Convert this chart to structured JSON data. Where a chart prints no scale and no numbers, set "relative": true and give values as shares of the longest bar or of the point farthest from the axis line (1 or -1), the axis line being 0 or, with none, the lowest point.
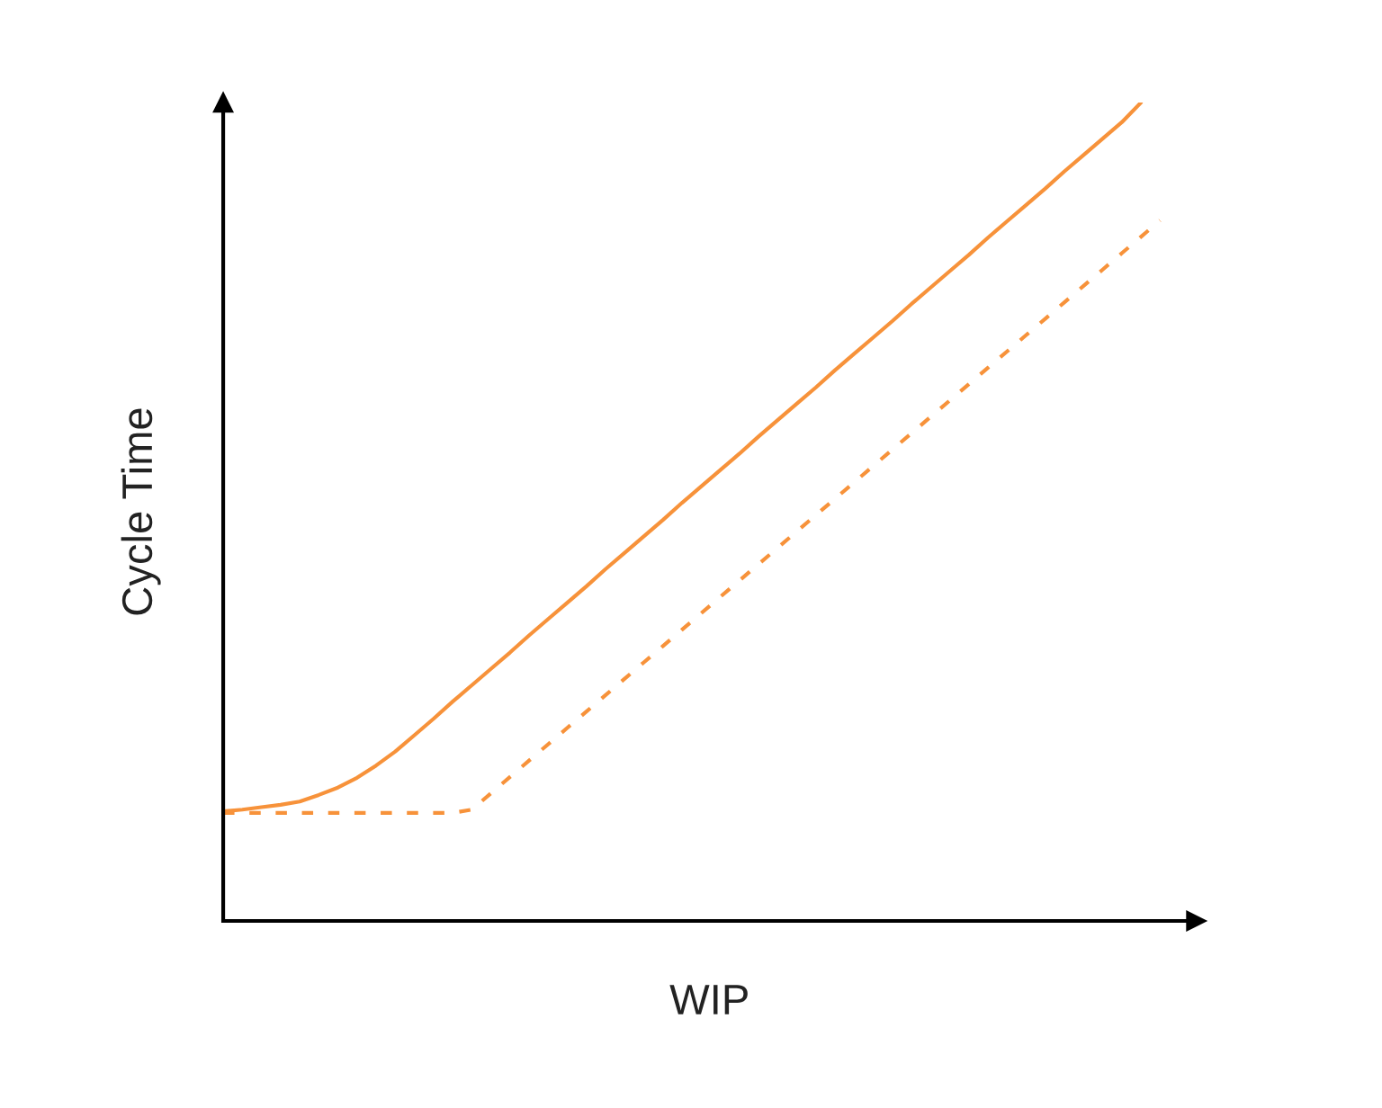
{
  "chart_data": {
    "type": "line",
    "relative": true,
    "xlabel": "WIP",
    "ylabel": "Cycle Time",
    "categories": [
      null,
      null,
      null,
      null,
      null,
      null,
      null,
      null,
      null,
      null,
      null,
      null,
      null,
      null,
      null,
      null,
      null,
      null,
      null,
      null,
      null,
      null,
      null,
      null,
      null,
      null,
      null,
      null,
      null,
      null,
      null,
      null,
      null,
      null,
      null,
      null,
      null,
      null,
      null,
      null,
      null,
      null,
      null,
      null,
      null,
      null,
      null,
      null,
      null,
      null
    ],
    "series": [
      {
        "color": "#f7923a",
        "line_style": "solid",
        "values": [
          0.134,
          0.136,
          0.139,
          0.142,
          0.146,
          0.154,
          0.163,
          0.175,
          0.19,
          0.207,
          0.227,
          0.247,
          0.268,
          0.288,
          0.308,
          0.328,
          0.349,
          0.369,
          0.389,
          0.409,
          0.43,
          0.45,
          0.47,
          0.49,
          0.511,
          0.531,
          0.551,
          0.571,
          0.592,
          0.612,
          0.632,
          0.652,
          0.673,
          0.693,
          0.713,
          0.733,
          0.754,
          0.774,
          0.794,
          0.814,
          0.835,
          0.855,
          0.875,
          0.895,
          0.916,
          0.936,
          0.956,
          0.976,
          1,
          null
        ]
      },
      {
        "color": "#f7923a",
        "line_style": "dashed",
        "values": [
          0.132,
          0.132,
          0.132,
          0.132,
          0.132,
          0.132,
          0.132,
          0.132,
          0.132,
          0.132,
          0.132,
          0.132,
          0.132,
          0.136,
          0.156,
          0.176,
          0.196,
          0.216,
          0.236,
          0.256,
          0.276,
          0.296,
          0.316,
          0.336,
          0.356,
          0.376,
          0.396,
          0.416,
          0.436,
          0.456,
          0.476,
          0.496,
          0.516,
          0.536,
          0.556,
          0.576,
          0.596,
          0.616,
          0.636,
          0.656,
          0.676,
          0.696,
          0.716,
          0.736,
          0.756,
          0.776,
          0.796,
          0.816,
          0.836,
          0.856
        ]
      }
    ]
  }
}
